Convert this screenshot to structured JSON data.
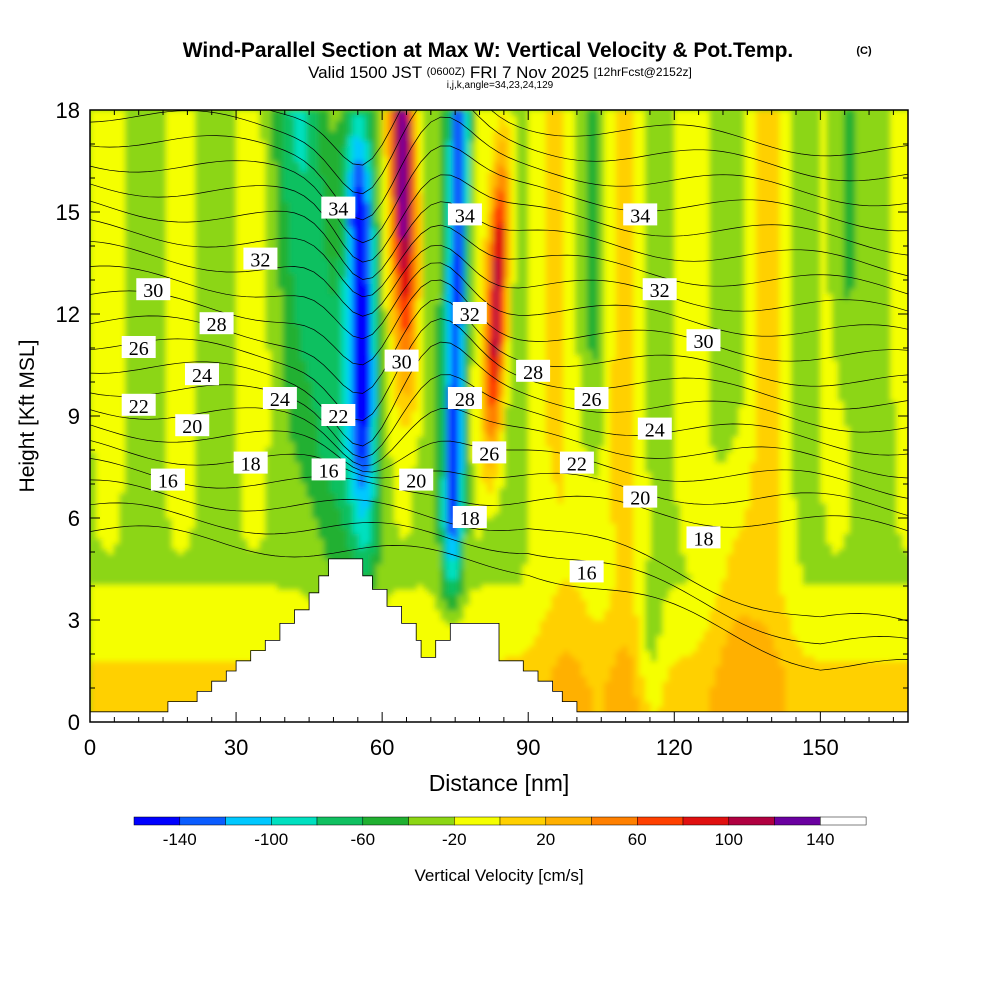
{
  "chart_data": {
    "type": "heatmap",
    "title": "Wind-Parallel Section at Max W: Vertical Velocity & Pot.Temp.",
    "title_mark": "(C)",
    "subtitle": {
      "valid": "Valid 1500 JST",
      "utc": "(0600Z)",
      "date": "FRI 7 Nov 2025",
      "fcst": "[12hrFcst@2152z]"
    },
    "params_line": "i,j,k,angle=34,23,24,129",
    "xlabel": "Distance [nm]",
    "ylabel": "Height [Kft MSL]",
    "xlim": [
      0,
      168
    ],
    "ylim": [
      0,
      18
    ],
    "xticks": [
      0,
      30,
      60,
      90,
      120,
      150
    ],
    "yticks": [
      0,
      3,
      6,
      9,
      12,
      15,
      18
    ],
    "colorbar": {
      "label": "Vertical Velocity [cm/s]",
      "bounds": [
        -160,
        -140,
        -120,
        -100,
        -80,
        -60,
        -40,
        -20,
        0,
        20,
        40,
        60,
        80,
        100,
        120,
        140,
        160
      ],
      "colors": [
        "#0000ff",
        "#0a5cff",
        "#00c8ff",
        "#00e0c0",
        "#10c060",
        "#20b030",
        "#8cd614",
        "#f5ff00",
        "#ffd000",
        "#ffb000",
        "#ff8000",
        "#ff4000",
        "#e01010",
        "#b00040",
        "#6a00a0",
        "#ffffff"
      ],
      "tick_labels": [
        "-140",
        "-100",
        "-60",
        "-20",
        "20",
        "60",
        "100",
        "140"
      ]
    },
    "vertical_velocity_bands": [
      {
        "range": [
          -160,
          -140
        ],
        "color": "#0000ff"
      },
      {
        "range": [
          -140,
          -120
        ],
        "color": "#0a5cff"
      },
      {
        "range": [
          -120,
          -100
        ],
        "color": "#00c8ff"
      },
      {
        "range": [
          -100,
          -80
        ],
        "color": "#00e0c0"
      },
      {
        "range": [
          -80,
          -60
        ],
        "color": "#10c060"
      },
      {
        "range": [
          -60,
          -40
        ],
        "color": "#20b030"
      },
      {
        "range": [
          -40,
          -20
        ],
        "color": "#8cd614"
      },
      {
        "range": [
          -20,
          20
        ],
        "color": "#f5ff00"
      },
      {
        "range": [
          20,
          40
        ],
        "color": "#ffd000"
      },
      {
        "range": [
          40,
          60
        ],
        "color": "#ffb000"
      },
      {
        "range": [
          60,
          80
        ],
        "color": "#ff8000"
      },
      {
        "range": [
          80,
          100
        ],
        "color": "#ff4000"
      },
      {
        "range": [
          100,
          120
        ],
        "color": "#e01010"
      },
      {
        "range": [
          120,
          140
        ],
        "color": "#b00040"
      },
      {
        "range": [
          140,
          160
        ],
        "color": "#6a00a0"
      }
    ],
    "terrain_profile_nm_kft": [
      [
        0,
        0.3
      ],
      [
        16,
        0.3
      ],
      [
        16,
        0.6
      ],
      [
        22,
        0.6
      ],
      [
        22,
        0.9
      ],
      [
        25,
        0.9
      ],
      [
        25,
        1.2
      ],
      [
        28,
        1.2
      ],
      [
        28,
        1.5
      ],
      [
        30,
        1.5
      ],
      [
        30,
        1.8
      ],
      [
        33,
        1.8
      ],
      [
        33,
        2.1
      ],
      [
        36,
        2.1
      ],
      [
        36,
        2.4
      ],
      [
        39,
        2.4
      ],
      [
        39,
        2.9
      ],
      [
        42,
        2.9
      ],
      [
        42,
        3.3
      ],
      [
        45,
        3.3
      ],
      [
        45,
        3.8
      ],
      [
        47,
        3.8
      ],
      [
        47,
        4.3
      ],
      [
        49,
        4.3
      ],
      [
        49,
        4.8
      ],
      [
        56,
        4.8
      ],
      [
        56,
        4.3
      ],
      [
        58,
        4.3
      ],
      [
        58,
        3.9
      ],
      [
        61,
        3.9
      ],
      [
        61,
        3.4
      ],
      [
        64,
        3.4
      ],
      [
        64,
        2.9
      ],
      [
        67,
        2.9
      ],
      [
        67,
        2.4
      ],
      [
        68,
        2.4
      ],
      [
        68,
        1.9
      ],
      [
        71,
        1.9
      ],
      [
        71,
        2.4
      ],
      [
        74,
        2.4
      ],
      [
        74,
        2.9
      ],
      [
        84,
        2.9
      ],
      [
        84,
        1.8
      ],
      [
        89,
        1.8
      ],
      [
        89,
        1.5
      ],
      [
        92,
        1.5
      ],
      [
        92,
        1.2
      ],
      [
        95,
        1.2
      ],
      [
        95,
        0.9
      ],
      [
        97,
        0.9
      ],
      [
        97,
        0.6
      ],
      [
        100,
        0.6
      ],
      [
        100,
        0.3
      ],
      [
        168,
        0.3
      ]
    ],
    "potential_temperature_labels": [
      {
        "text": "34",
        "x": 51,
        "y": 15.1
      },
      {
        "text": "34",
        "x": 77,
        "y": 14.9
      },
      {
        "text": "34",
        "x": 113,
        "y": 14.9
      },
      {
        "text": "32",
        "x": 35,
        "y": 13.6
      },
      {
        "text": "32",
        "x": 78,
        "y": 12.0
      },
      {
        "text": "32",
        "x": 117,
        "y": 12.7
      },
      {
        "text": "30",
        "x": 13,
        "y": 12.7
      },
      {
        "text": "30",
        "x": 64,
        "y": 10.6
      },
      {
        "text": "30",
        "x": 126,
        "y": 11.2
      },
      {
        "text": "28",
        "x": 26,
        "y": 11.7
      },
      {
        "text": "28",
        "x": 77,
        "y": 9.5
      },
      {
        "text": "28",
        "x": 91,
        "y": 10.3
      },
      {
        "text": "26",
        "x": 10,
        "y": 11.0
      },
      {
        "text": "26",
        "x": 82,
        "y": 7.9
      },
      {
        "text": "26",
        "x": 103,
        "y": 9.5
      },
      {
        "text": "24",
        "x": 23,
        "y": 10.2
      },
      {
        "text": "24",
        "x": 39,
        "y": 9.5
      },
      {
        "text": "24",
        "x": 116,
        "y": 8.6
      },
      {
        "text": "22",
        "x": 10,
        "y": 9.3
      },
      {
        "text": "22",
        "x": 51,
        "y": 9.0
      },
      {
        "text": "22",
        "x": 100,
        "y": 7.6
      },
      {
        "text": "20",
        "x": 21,
        "y": 8.7
      },
      {
        "text": "20",
        "x": 67,
        "y": 7.1
      },
      {
        "text": "20",
        "x": 113,
        "y": 6.6
      },
      {
        "text": "18",
        "x": 33,
        "y": 7.6
      },
      {
        "text": "18",
        "x": 78,
        "y": 6.0
      },
      {
        "text": "18",
        "x": 126,
        "y": 5.4
      },
      {
        "text": "16",
        "x": 16,
        "y": 7.1
      },
      {
        "text": "16",
        "x": 49,
        "y": 7.4
      },
      {
        "text": "16",
        "x": 102,
        "y": 4.4
      }
    ]
  }
}
